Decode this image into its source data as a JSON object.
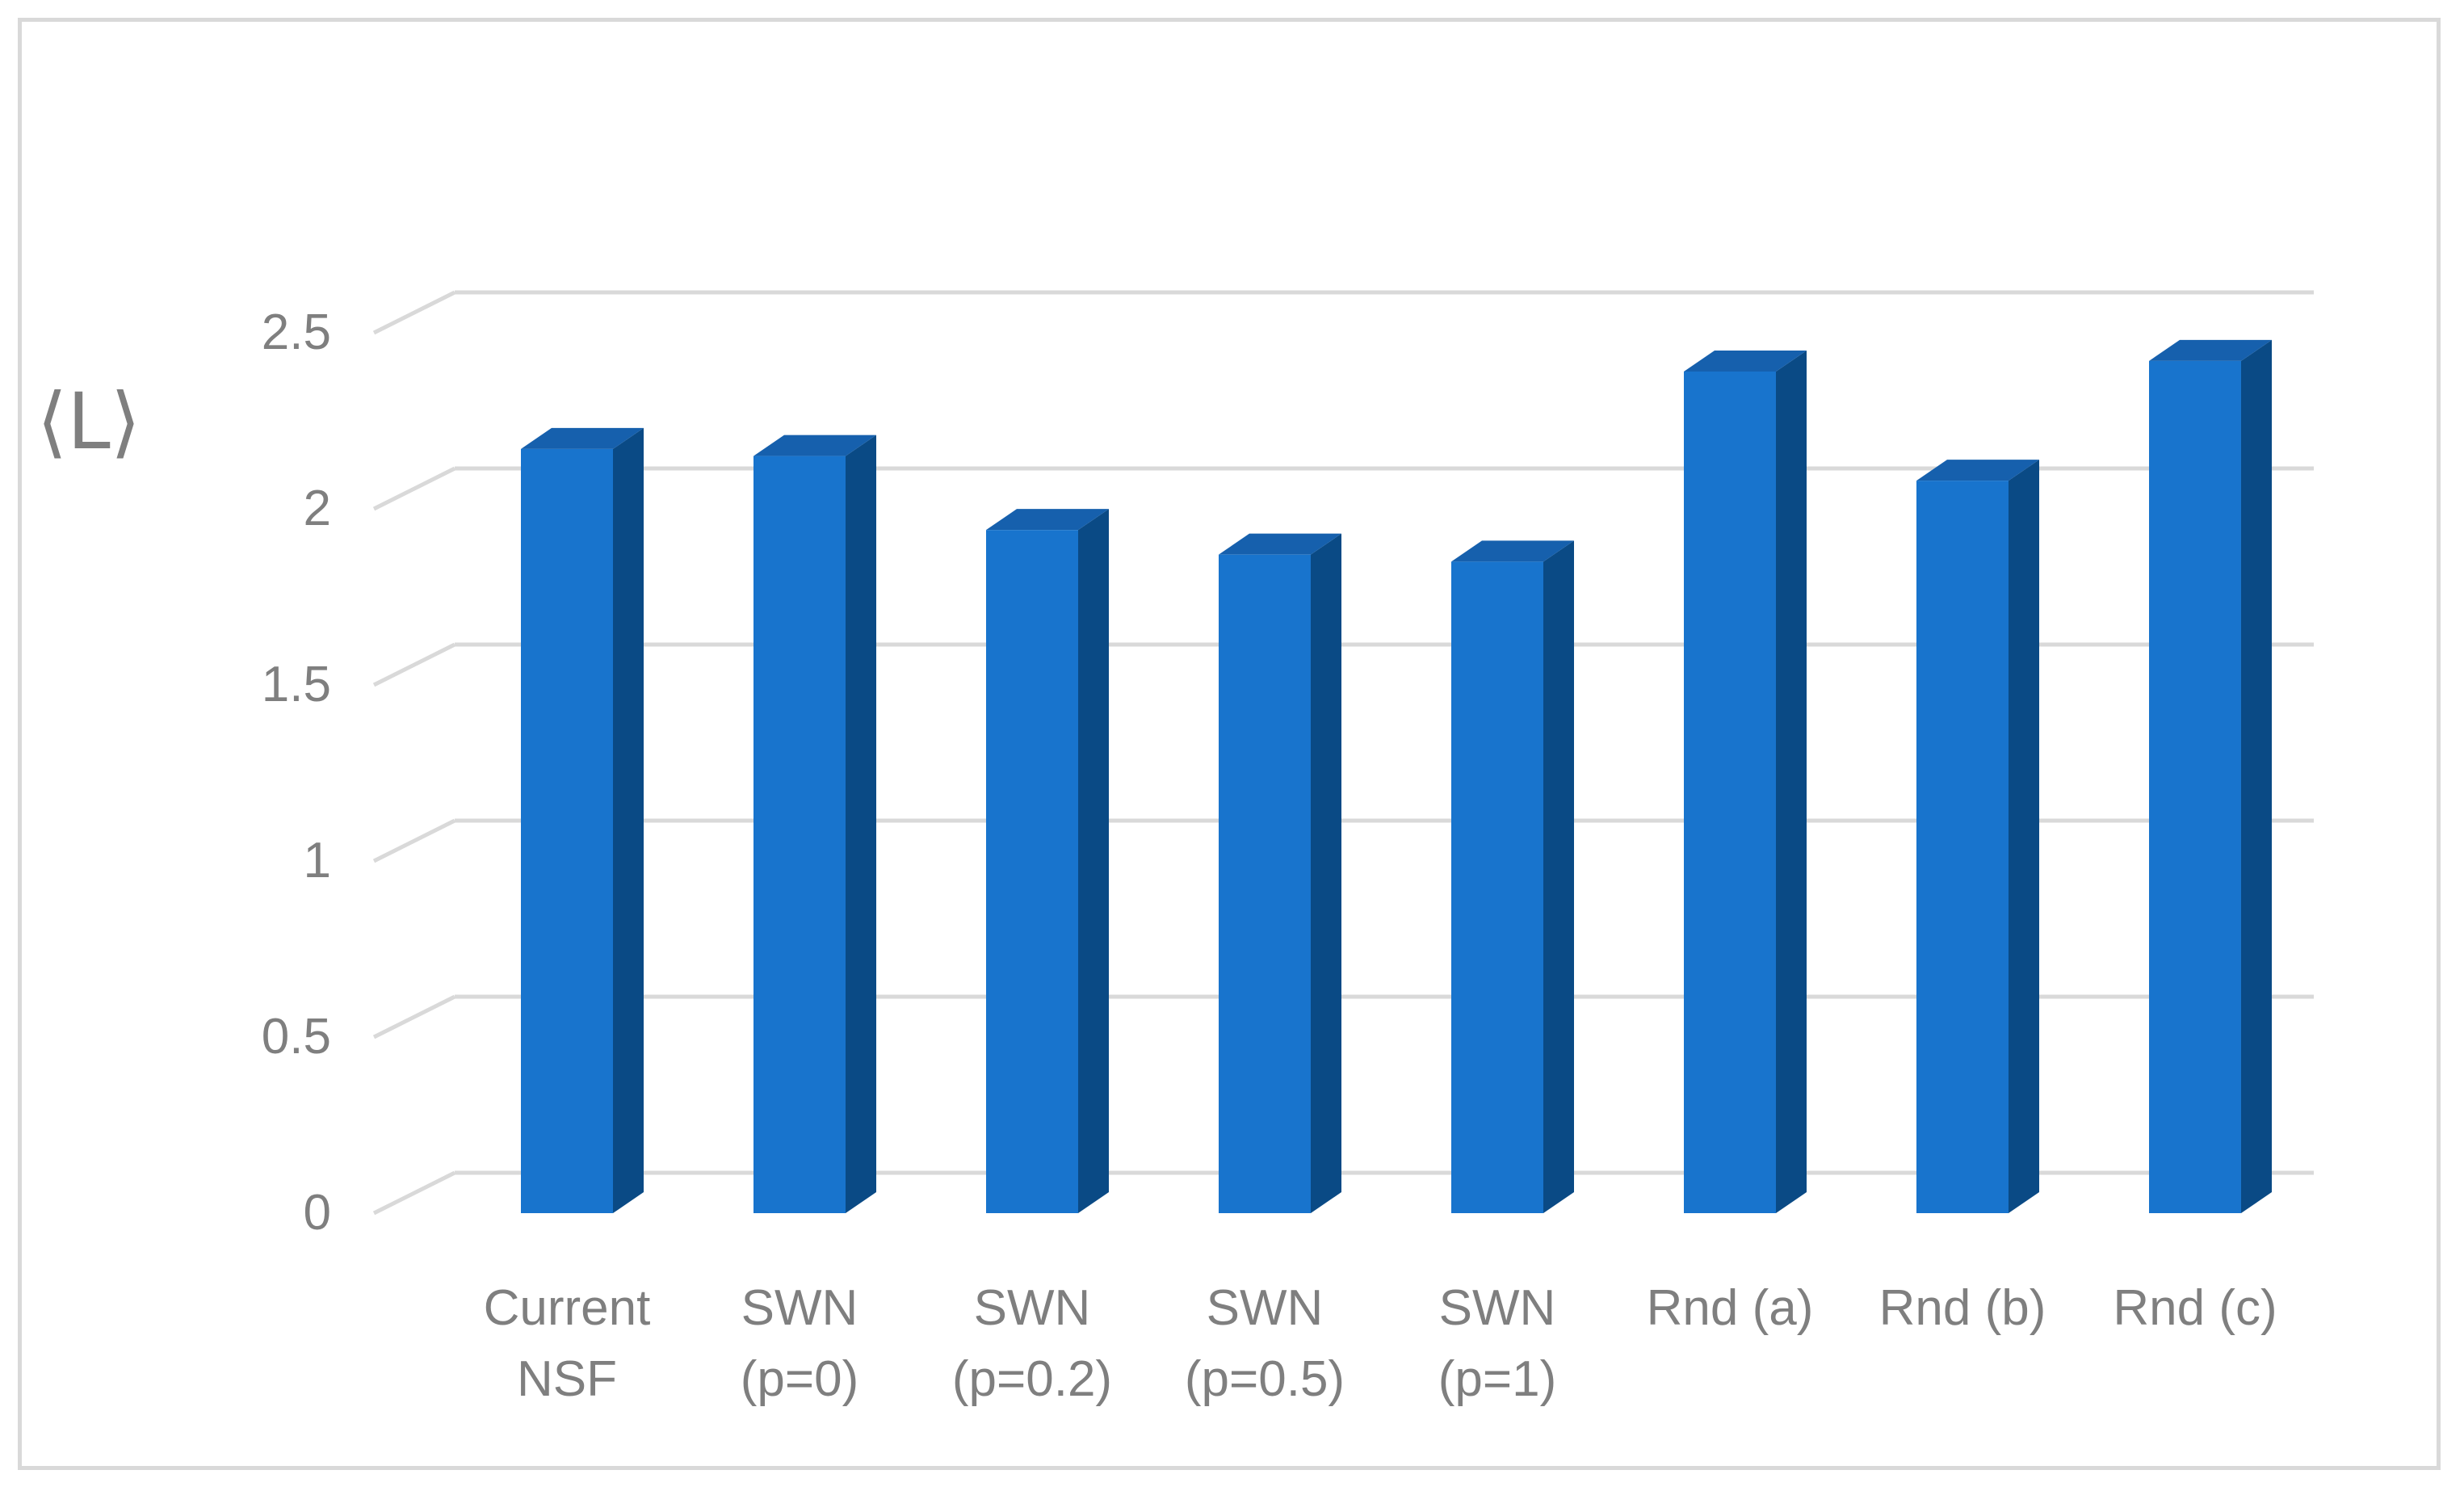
{
  "chart_data": {
    "type": "bar",
    "style": "3d-column",
    "ylabel": "⟨L⟩",
    "xlabel": "",
    "ylim": [
      0,
      2.5
    ],
    "yticks": [
      "0",
      "0.5",
      "1",
      "1.5",
      "2",
      "2.5"
    ],
    "grid": true,
    "categories": [
      [
        "Current",
        "NSF"
      ],
      [
        "SWN",
        "(p=0)"
      ],
      [
        "SWN",
        "(p=0.2)"
      ],
      [
        "SWN",
        "(p=0.5)"
      ],
      [
        "SWN",
        "(p=1)"
      ],
      [
        "Rnd (a)"
      ],
      [
        "Rnd (b)"
      ],
      [
        "Rnd (c)"
      ]
    ],
    "values": [
      2.17,
      2.15,
      1.94,
      1.87,
      1.85,
      2.39,
      2.08,
      2.42
    ],
    "colors": {
      "front": "#1874cd",
      "side": "#0a4a85",
      "top": "#1660ad",
      "grid": "#d9d9d9",
      "text": "#7f7f7f"
    }
  }
}
